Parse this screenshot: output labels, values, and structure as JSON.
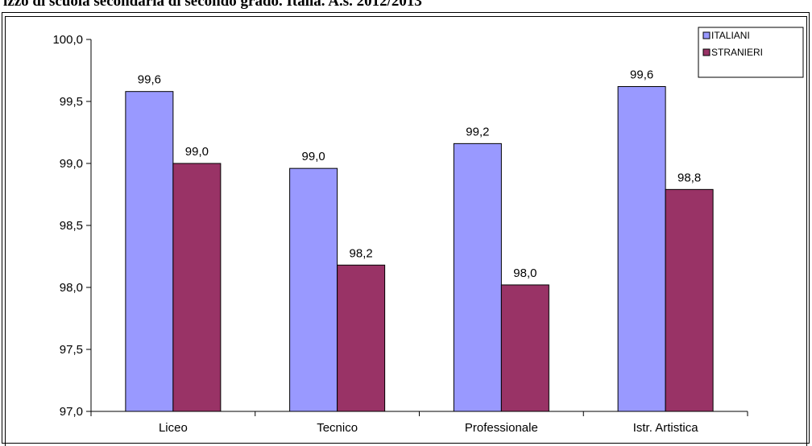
{
  "page": {
    "title": "izzo di scuola secondaria di secondo grado. Italia. A.s. 2012/2013"
  },
  "colors": {
    "italiani": "#9999ff",
    "stranieri": "#993366",
    "stroke": "#000000"
  },
  "chart_data": {
    "type": "bar",
    "title": "",
    "xlabel": "",
    "ylabel": "",
    "categories": [
      "Liceo",
      "Tecnico",
      "Professionale",
      "Istr. Artistica"
    ],
    "series": [
      {
        "name": "ITALIANI",
        "values": [
          99.58,
          98.96,
          99.16,
          99.62
        ],
        "labels": [
          "99,6",
          "99,0",
          "99,2",
          "99,6"
        ]
      },
      {
        "name": "STRANIERI",
        "values": [
          99.0,
          98.18,
          98.02,
          98.79
        ],
        "labels": [
          "99,0",
          "98,2",
          "98,0",
          "98,8"
        ]
      }
    ],
    "ylim": [
      97.0,
      100.0
    ],
    "yticks": [
      97.0,
      97.5,
      98.0,
      98.5,
      99.0,
      99.5,
      100.0
    ],
    "ytick_labels": [
      "97,0",
      "97,5",
      "98,0",
      "98,5",
      "99,0",
      "99,5",
      "100,0"
    ],
    "grid": false,
    "legend": {
      "position": "top-right",
      "entries": [
        "ITALIANI",
        "STRANIERI"
      ]
    }
  }
}
